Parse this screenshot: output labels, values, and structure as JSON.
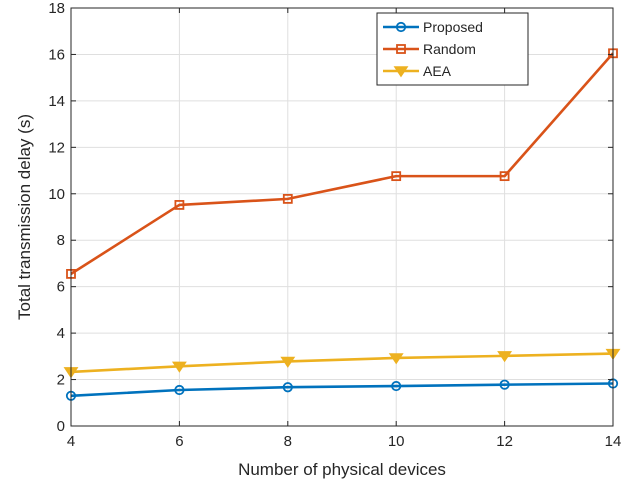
{
  "chart_data": {
    "type": "line",
    "xlabel": "Number of physical devices",
    "ylabel": "Total transmission delay (s)",
    "x": [
      4,
      6,
      8,
      10,
      12,
      14
    ],
    "xlim": [
      4,
      14
    ],
    "ylim": [
      0,
      18
    ],
    "xticks": [
      4,
      6,
      8,
      10,
      12,
      14
    ],
    "yticks": [
      0,
      2,
      4,
      6,
      8,
      10,
      12,
      14,
      16,
      18
    ],
    "grid": true,
    "legend_position": "top-right",
    "series": [
      {
        "name": "Proposed",
        "values": [
          1.3,
          1.55,
          1.67,
          1.72,
          1.78,
          1.83
        ],
        "color": "#0072BD",
        "marker": "circle"
      },
      {
        "name": "Random",
        "values": [
          6.55,
          9.52,
          9.78,
          10.76,
          10.76,
          16.05
        ],
        "color": "#D95319",
        "marker": "square"
      },
      {
        "name": "AEA",
        "values": [
          2.33,
          2.57,
          2.78,
          2.93,
          3.02,
          3.12
        ],
        "color": "#EDB120",
        "marker": "triangle-down"
      }
    ]
  }
}
